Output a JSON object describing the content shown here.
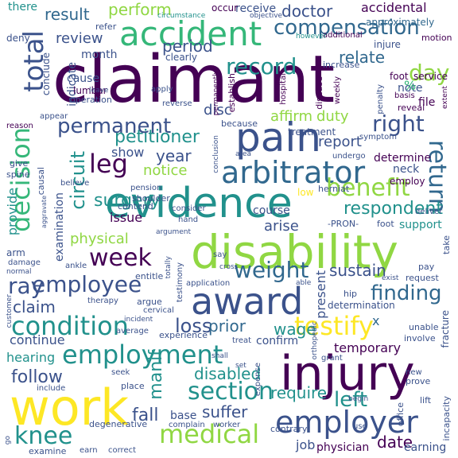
{
  "palette": {
    "background": "#ffffff",
    "deep_purple": "#440154",
    "indigo": "#3b528b",
    "blue": "#31688e",
    "teal": "#21918c",
    "green": "#35b779",
    "lime": "#90d743",
    "yellow": "#fde725"
  },
  "words": {
    "claimant": "claimant",
    "injury": "injury",
    "work": "work",
    "disability": "disability",
    "evidence": "evidence",
    "pain": "pain",
    "award": "award",
    "accident": "accident",
    "arbitrator": "arbitrator",
    "employer": "employer",
    "employment": "employment",
    "medical": "medical",
    "compensation": "compensation",
    "condition": "condition",
    "permanent": "permanent",
    "decision": "decision",
    "benefit": "benefit",
    "total": "total",
    "testify": "testify",
    "knee": "knee",
    "employee": "employee",
    "section": "section",
    "week": "week",
    "leg": "leg",
    "finding": "finding",
    "right": "right",
    "record": "record",
    "day": "day",
    "return": "return",
    "circuit": "circuit",
    "weight": "weight",
    "loss": "loss",
    "left": "left",
    "petitioner": "petitioner",
    "surgery": "surgery",
    "respondent": "respondent",
    "suffer": "suffer",
    "sustain": "sustain",
    "result": "result",
    "review": "review",
    "perform": "perform",
    "doctor": "doctor",
    "accidental": "accidental",
    "approximately": "approximately",
    "wage": "wage",
    "disabled": "disabled",
    "require": "require",
    "manif": "manif",
    "ray": "ray",
    "fall": "fall",
    "follow": "follow",
    "claim": "claim",
    "prior": "prior",
    "period": "period",
    "relate": "relate",
    "affirm": "affirm",
    "duty": "duty",
    "report": "report",
    "disc": "disc",
    "year": "year",
    "notice": "notice",
    "issue": "issue",
    "show": "show",
    "provide": "provide",
    "physical": "physical",
    "examination": "examination",
    "arise": "arise",
    "continue": "continue",
    "hearing": "hearing",
    "temporary": "temporary",
    "confirm": "confirm",
    "job": "job",
    "date": "date",
    "physician": "physician",
    "earning": "earning",
    "base": "base",
    "course": "course",
    "determine": "determine",
    "neck": "neck",
    "support": "support",
    "present": "present",
    "month": "month",
    "indicate": "indicate",
    "note": "note",
    "file": "file",
    "service": "service",
    "treatment": "treatment",
    "cause": "cause",
    "x": "x",
    "receive": "receive",
    "there": "there",
    "occur": "occur",
    "deny": "deny",
    "conclude": "conclude",
    "refer": "refer",
    "lumbar": "lumbar",
    "operation": "operation",
    "clearly": "clearly",
    "additional": "additional",
    "motion": "motion",
    "increase": "increase",
    "injure": "injure",
    "foot": "foot",
    "objective": "objective",
    "circumstance": "circumstance",
    "however": "however",
    "permanently": "permanently",
    "hospital": "hospital",
    "establish": "establish",
    "disease": "disease",
    "weekly": "weekly",
    "penalty": "penalty",
    "basis": "basis",
    "reveal": "reveal",
    "extent": "extent",
    "reason": "reason",
    "appear": "appear",
    "leave": "leave",
    "apply": "apply",
    "reverse": "reverse",
    "because": "because",
    "area": "area",
    "symptom": "symptom",
    "undergo": "undergo",
    "employ": "employ",
    "herniat": "herniat",
    "low": "low",
    "deliver": "deliver",
    "pension": "pension",
    "shoulder": "shoulder",
    "contend": "contend",
    "consider": "consider",
    "hand": "hand",
    "pron": "-PRON-",
    "foot2": "foot",
    "take": "take",
    "argument": "argument",
    "say": "say",
    "cross": "cross",
    "application": "application",
    "able": "able",
    "exist": "exist",
    "pay": "pay",
    "request": "request",
    "hip": "hip",
    "determination": "determination",
    "unable": "unable",
    "involve": "involve",
    "fracture": "fracture",
    "treat": "treat",
    "grant": "grant",
    "new": "new",
    "prove": "prove",
    "lift": "lift",
    "begin": "begin",
    "office": "office",
    "incapacity": "incapacity",
    "contrary": "contrary",
    "use": "use",
    "spine": "spine",
    "give": "give",
    "causal": "causal",
    "believe": "believe",
    "aggravate": "aggravate",
    "arm": "arm",
    "damage": "damage",
    "normal": "normal",
    "ankle": "ankle",
    "entitle": "entitle",
    "therapy": "therapy",
    "argue": "argue",
    "cervical": "cervical",
    "incident": "incident",
    "average": "average",
    "experience": "experience",
    "testimony": "testimony",
    "totally": "totally",
    "customer": "customer",
    "seek": "seek",
    "place": "place",
    "include": "include",
    "degenerative": "degenerative",
    "complain": "complain",
    "worker": "worker",
    "examine": "examine",
    "earn": "earn",
    "correct": "correct",
    "go": "go",
    "shall": "shall",
    "expense": "expense",
    "orthopedic": "orthopedic",
    "conclusion": "conclusion",
    "set": "set",
    "percent": "%"
  }
}
